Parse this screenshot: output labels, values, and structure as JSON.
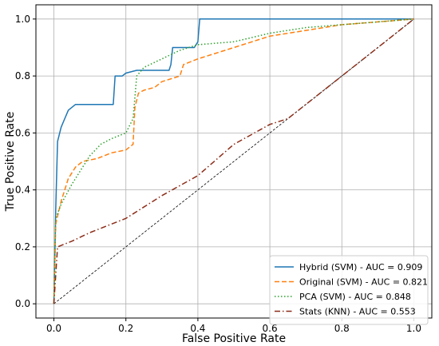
{
  "chart_data": {
    "type": "line",
    "xlabel": "False Positive Rate",
    "ylabel": "True Positive Rate",
    "xlim": [
      -0.05,
      1.05
    ],
    "ylim": [
      -0.05,
      1.05
    ],
    "xticks": [
      "0.0",
      "0.2",
      "0.4",
      "0.6",
      "0.8",
      "1.0"
    ],
    "yticks": [
      "0.0",
      "0.2",
      "0.4",
      "0.6",
      "0.8",
      "1.0"
    ],
    "grid": true,
    "legend_position": "lower-right",
    "series": [
      {
        "name": "Hybrid (SVM) - AUC = 0.909",
        "color": "#1f77b4",
        "style": "solid",
        "x": [
          0,
          0.005,
          0.01,
          0.02,
          0.03,
          0.04,
          0.05,
          0.06,
          0.1,
          0.165,
          0.17,
          0.19,
          0.2,
          0.23,
          0.32,
          0.325,
          0.33,
          0.39,
          0.4,
          0.405,
          1.0
        ],
        "y": [
          0,
          0.33,
          0.57,
          0.62,
          0.65,
          0.68,
          0.69,
          0.7,
          0.7,
          0.7,
          0.8,
          0.8,
          0.81,
          0.82,
          0.82,
          0.84,
          0.9,
          0.9,
          0.92,
          1.0,
          1.0
        ]
      },
      {
        "name": "Original (SVM) - AUC = 0.821",
        "color": "#ff7f0e",
        "style": "dashed",
        "x": [
          0,
          0.005,
          0.02,
          0.04,
          0.06,
          0.08,
          0.12,
          0.16,
          0.2,
          0.22,
          0.225,
          0.235,
          0.25,
          0.28,
          0.3,
          0.35,
          0.36,
          0.4,
          0.5,
          0.6,
          0.7,
          0.8,
          0.9,
          1.0
        ],
        "y": [
          0,
          0.28,
          0.36,
          0.44,
          0.48,
          0.5,
          0.51,
          0.53,
          0.54,
          0.56,
          0.69,
          0.74,
          0.75,
          0.76,
          0.78,
          0.8,
          0.84,
          0.86,
          0.9,
          0.94,
          0.96,
          0.98,
          0.99,
          1.0
        ]
      },
      {
        "name": "PCA (SVM) - AUC = 0.848",
        "color": "#2ca02c",
        "style": "dotted",
        "x": [
          0,
          0.005,
          0.02,
          0.05,
          0.08,
          0.1,
          0.13,
          0.16,
          0.2,
          0.22,
          0.23,
          0.25,
          0.3,
          0.35,
          0.4,
          0.5,
          0.6,
          0.7,
          0.8,
          0.9,
          1.0
        ],
        "y": [
          0,
          0.3,
          0.35,
          0.42,
          0.48,
          0.52,
          0.56,
          0.58,
          0.6,
          0.65,
          0.8,
          0.83,
          0.86,
          0.89,
          0.91,
          0.92,
          0.95,
          0.97,
          0.98,
          0.99,
          1.0
        ]
      },
      {
        "name": "Stats (KNN) - AUC = 0.553",
        "color": "#8c2d19",
        "style": "dashdot",
        "x": [
          0,
          0.01,
          0.05,
          0.1,
          0.2,
          0.3,
          0.4,
          0.5,
          0.6,
          0.65,
          0.7,
          0.8,
          0.9,
          1.0
        ],
        "y": [
          0,
          0.2,
          0.22,
          0.25,
          0.3,
          0.38,
          0.45,
          0.56,
          0.63,
          0.65,
          0.7,
          0.8,
          0.9,
          1.0
        ]
      },
      {
        "name": "",
        "color": "#000000",
        "style": "chance",
        "x": [
          0,
          1
        ],
        "y": [
          0,
          1
        ]
      }
    ]
  }
}
